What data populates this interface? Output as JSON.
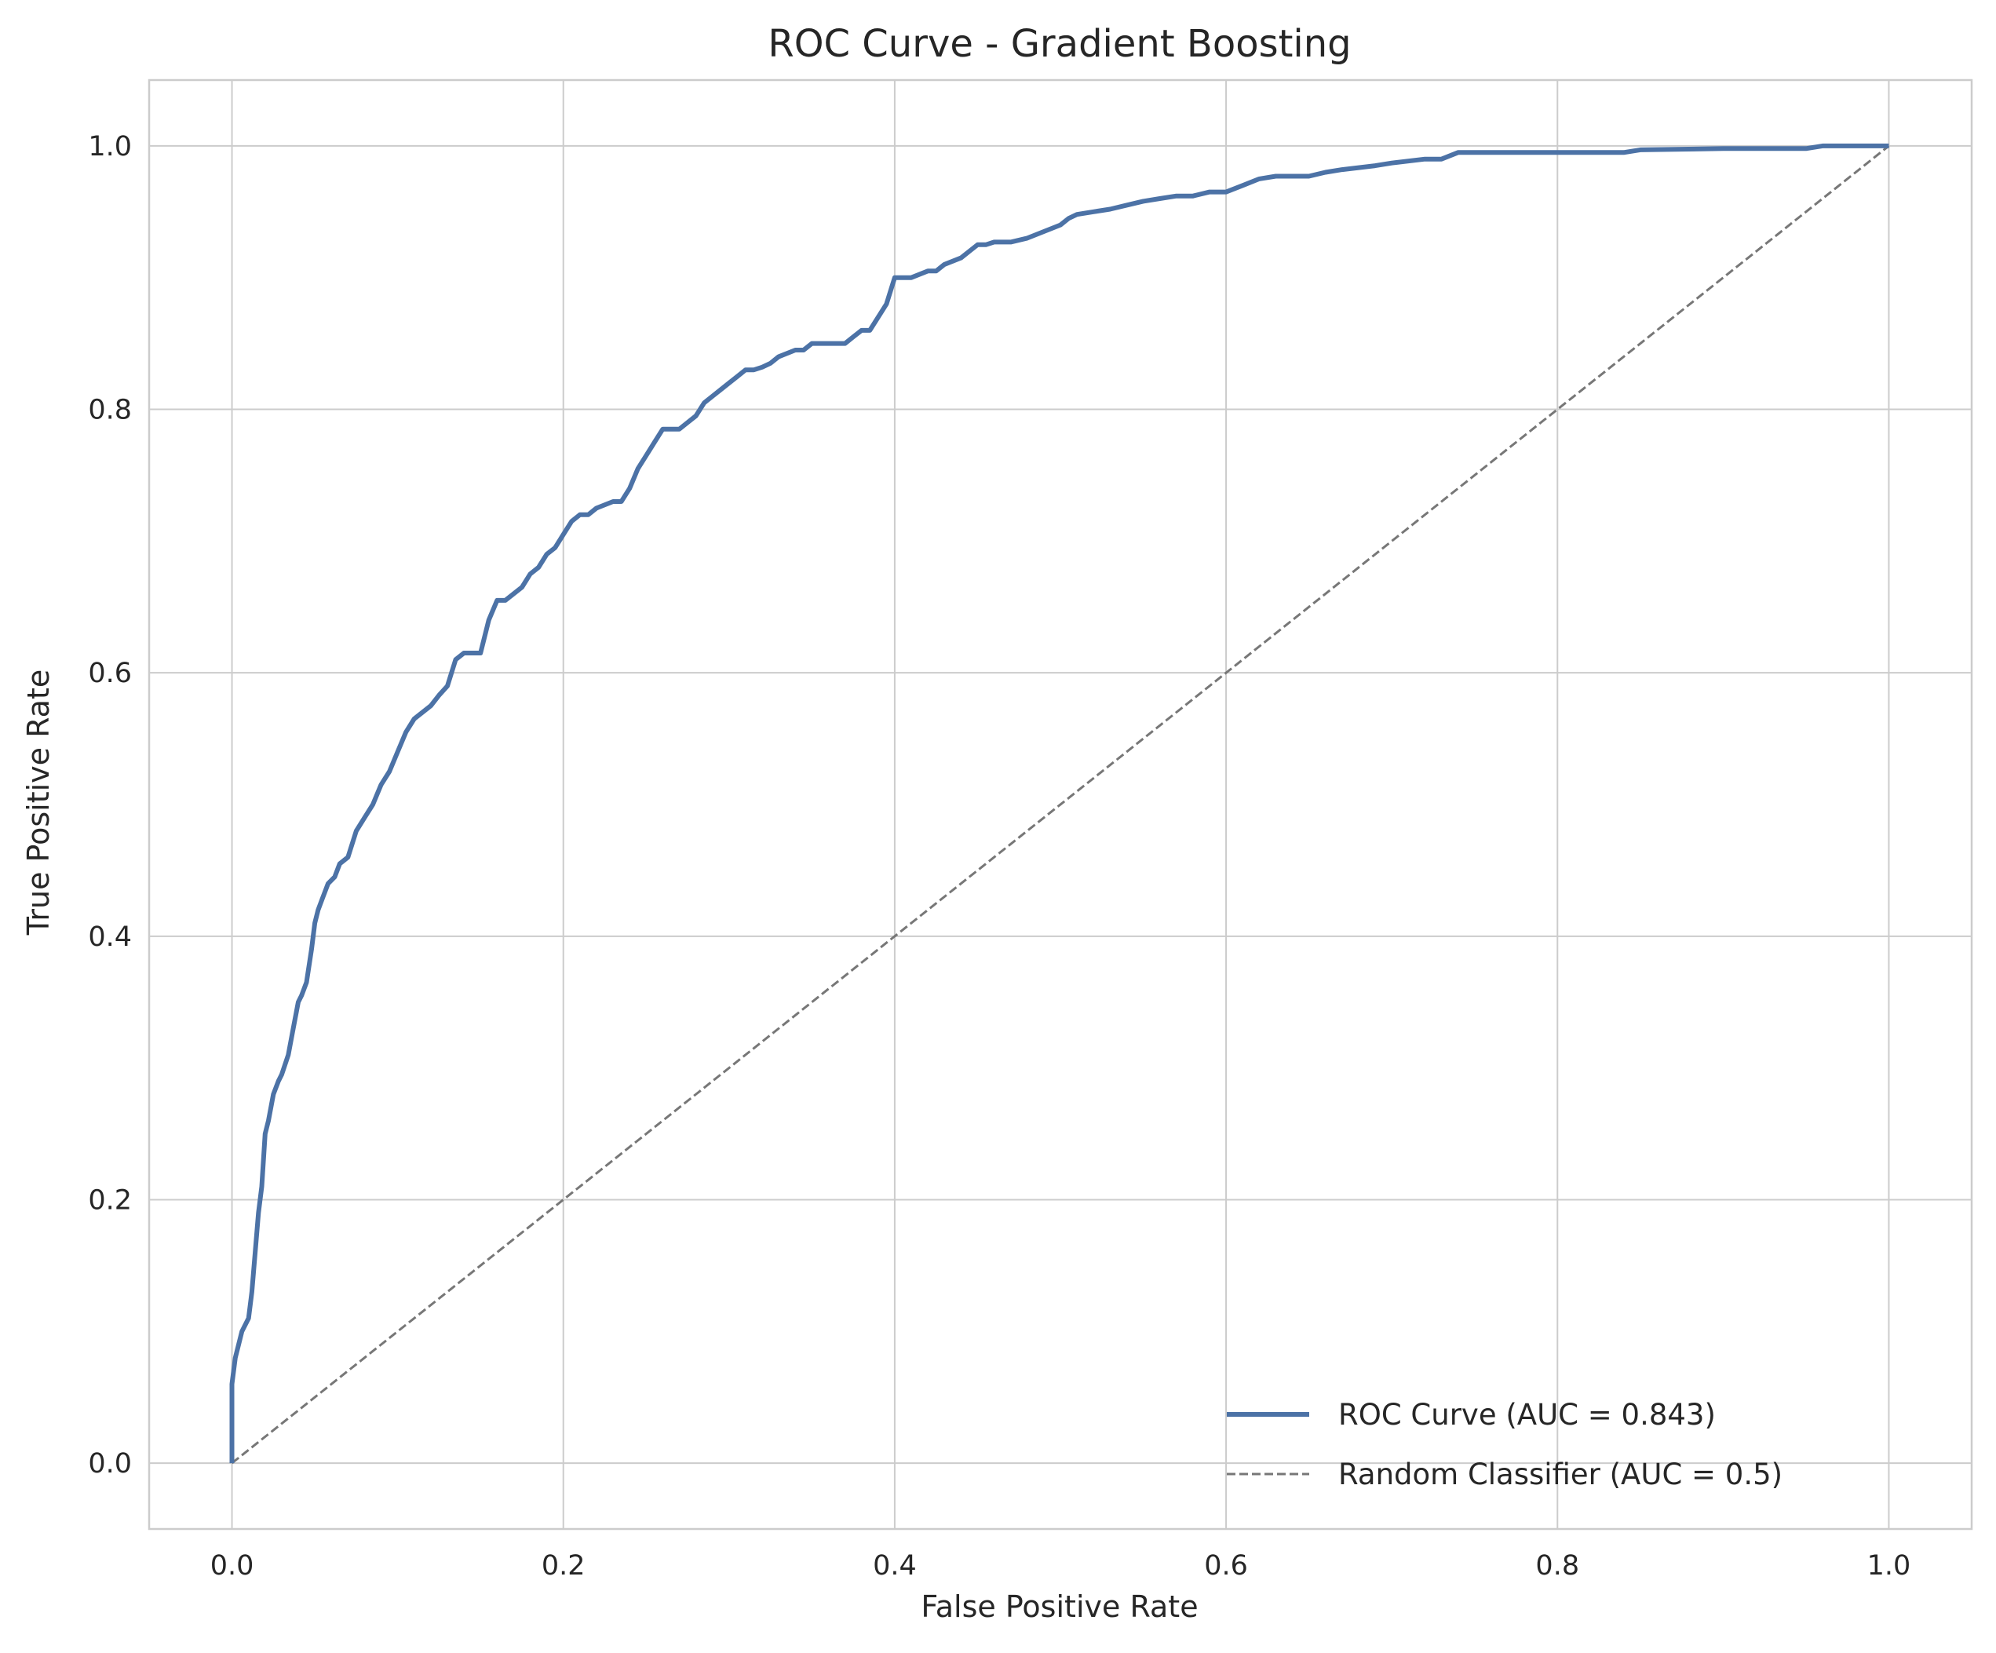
{
  "chart_data": {
    "type": "line",
    "title": "ROC Curve - Gradient Boosting",
    "xlabel": "False Positive Rate",
    "ylabel": "True Positive Rate",
    "xlim": [
      -0.05,
      1.05
    ],
    "ylim": [
      -0.05,
      1.05
    ],
    "xticks": [
      "0.0",
      "0.2",
      "0.4",
      "0.6",
      "0.8",
      "1.0"
    ],
    "yticks": [
      "0.0",
      "0.2",
      "0.4",
      "0.6",
      "0.8",
      "1.0"
    ],
    "grid": true,
    "legend_position": "lower-right",
    "series": [
      {
        "name": "ROC Curve (AUC = 0.843)",
        "color": "#4c72a6",
        "style": "solid",
        "x": [
          0.0,
          0.0,
          0.002,
          0.004,
          0.006,
          0.01,
          0.012,
          0.014,
          0.016,
          0.018,
          0.02,
          0.022,
          0.025,
          0.028,
          0.03,
          0.034,
          0.037,
          0.04,
          0.042,
          0.045,
          0.048,
          0.05,
          0.052,
          0.055,
          0.058,
          0.062,
          0.065,
          0.07,
          0.075,
          0.08,
          0.085,
          0.09,
          0.095,
          0.1,
          0.105,
          0.11,
          0.115,
          0.12,
          0.125,
          0.13,
          0.135,
          0.14,
          0.15,
          0.155,
          0.16,
          0.165,
          0.17,
          0.175,
          0.18,
          0.185,
          0.19,
          0.195,
          0.2,
          0.205,
          0.21,
          0.215,
          0.22,
          0.23,
          0.235,
          0.24,
          0.245,
          0.25,
          0.255,
          0.26,
          0.27,
          0.275,
          0.28,
          0.285,
          0.29,
          0.295,
          0.3,
          0.305,
          0.31,
          0.315,
          0.32,
          0.325,
          0.33,
          0.34,
          0.345,
          0.35,
          0.36,
          0.37,
          0.375,
          0.38,
          0.385,
          0.39,
          0.395,
          0.4,
          0.405,
          0.41,
          0.42,
          0.425,
          0.43,
          0.44,
          0.445,
          0.45,
          0.455,
          0.46,
          0.47,
          0.48,
          0.49,
          0.5,
          0.505,
          0.51,
          0.52,
          0.53,
          0.54,
          0.55,
          0.56,
          0.57,
          0.58,
          0.59,
          0.6,
          0.61,
          0.62,
          0.63,
          0.65,
          0.66,
          0.67,
          0.69,
          0.7,
          0.72,
          0.73,
          0.74,
          0.76,
          0.8,
          0.84,
          0.85,
          0.9,
          0.95,
          0.96,
          1.0
        ],
        "y": [
          0.0,
          0.06,
          0.08,
          0.09,
          0.1,
          0.11,
          0.13,
          0.16,
          0.19,
          0.21,
          0.25,
          0.26,
          0.28,
          0.29,
          0.295,
          0.31,
          0.33,
          0.35,
          0.355,
          0.365,
          0.39,
          0.41,
          0.42,
          0.43,
          0.44,
          0.445,
          0.455,
          0.46,
          0.48,
          0.49,
          0.5,
          0.515,
          0.525,
          0.54,
          0.555,
          0.565,
          0.57,
          0.575,
          0.583,
          0.59,
          0.61,
          0.615,
          0.615,
          0.64,
          0.655,
          0.655,
          0.66,
          0.665,
          0.675,
          0.68,
          0.69,
          0.695,
          0.705,
          0.715,
          0.72,
          0.72,
          0.725,
          0.73,
          0.73,
          0.74,
          0.755,
          0.765,
          0.775,
          0.785,
          0.785,
          0.79,
          0.795,
          0.805,
          0.81,
          0.815,
          0.82,
          0.825,
          0.83,
          0.83,
          0.832,
          0.835,
          0.84,
          0.845,
          0.845,
          0.85,
          0.85,
          0.85,
          0.855,
          0.86,
          0.86,
          0.87,
          0.88,
          0.9,
          0.9,
          0.9,
          0.905,
          0.905,
          0.91,
          0.915,
          0.92,
          0.925,
          0.925,
          0.927,
          0.927,
          0.93,
          0.935,
          0.94,
          0.945,
          0.948,
          0.95,
          0.952,
          0.955,
          0.958,
          0.96,
          0.962,
          0.962,
          0.965,
          0.965,
          0.97,
          0.975,
          0.977,
          0.977,
          0.98,
          0.982,
          0.985,
          0.987,
          0.99,
          0.99,
          0.995,
          0.995,
          0.995,
          0.995,
          0.997,
          0.998,
          0.998,
          1.0,
          1.0
        ]
      },
      {
        "name": "Random Classifier (AUC = 0.5)",
        "color": "#777777",
        "style": "dashed",
        "x": [
          0.0,
          1.0
        ],
        "y": [
          0.0,
          1.0
        ]
      }
    ]
  }
}
